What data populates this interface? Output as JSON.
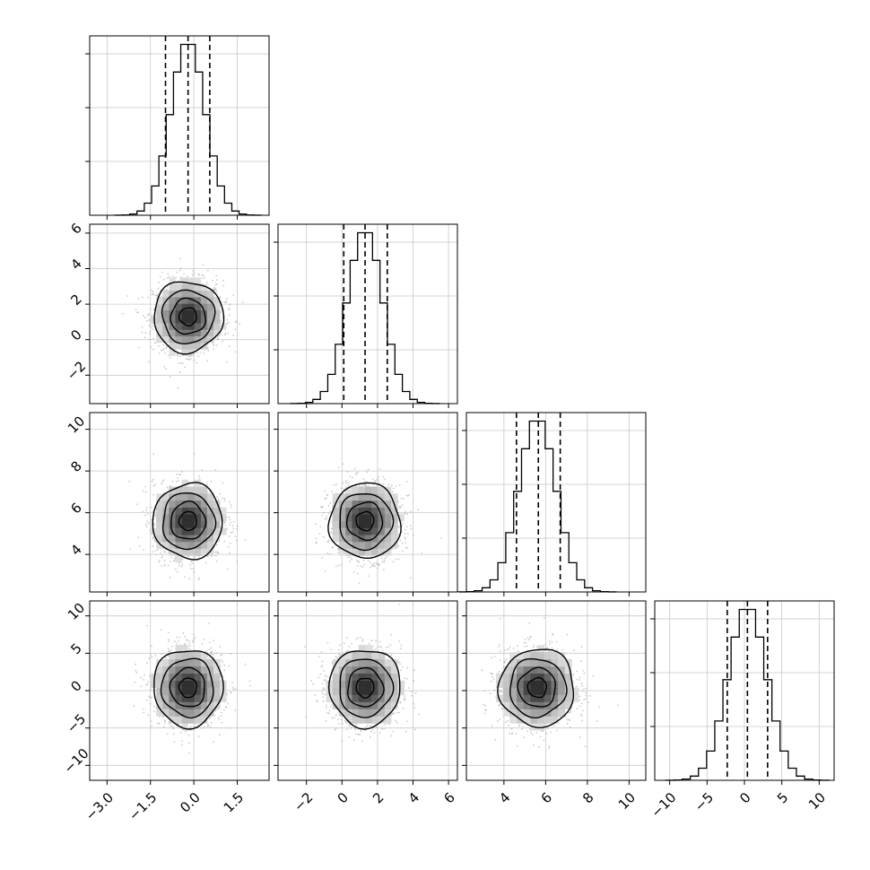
{
  "chart_data": {
    "type": "corner",
    "parameters": 4,
    "grid": true,
    "axes": [
      {
        "range": [
          -3.6,
          2.6
        ],
        "ticks": [
          -3.0,
          -1.5,
          0.0,
          1.5
        ],
        "tick_labels": [
          "−3.0",
          "−1.5",
          "0.0",
          "1.5"
        ],
        "mean": -0.2,
        "sd": 0.6,
        "quantiles": [
          -0.98,
          -0.2,
          0.55
        ]
      },
      {
        "range": [
          -3.6,
          6.5
        ],
        "ticks": [
          -2,
          0,
          2,
          4,
          6
        ],
        "tick_labels": [
          "−2",
          "0",
          "2",
          "4",
          "6"
        ],
        "mean": 1.3,
        "sd": 1.0,
        "quantiles": [
          0.1,
          1.3,
          2.55
        ]
      },
      {
        "range": [
          2.2,
          10.8
        ],
        "ticks": [
          4,
          6,
          8,
          10
        ],
        "tick_labels": [
          "4",
          "6",
          "8",
          "10"
        ],
        "mean": 5.6,
        "sd": 0.9,
        "quantiles": [
          4.6,
          5.65,
          6.7
        ]
      },
      {
        "range": [
          -12,
          12
        ],
        "ticks": [
          -10,
          -5,
          0,
          5,
          10
        ],
        "tick_labels": [
          "−10",
          "−5",
          "0",
          "5",
          "10"
        ],
        "mean": 0.4,
        "sd": 2.6,
        "quantiles": [
          -2.3,
          0.4,
          3.1
        ]
      }
    ],
    "histogram_bins": 20,
    "contour_levels_sigma": [
      0.5,
      1.0,
      1.5,
      2.0
    ],
    "scatter_color": "#b4b4b4",
    "line_color": "#000000"
  }
}
